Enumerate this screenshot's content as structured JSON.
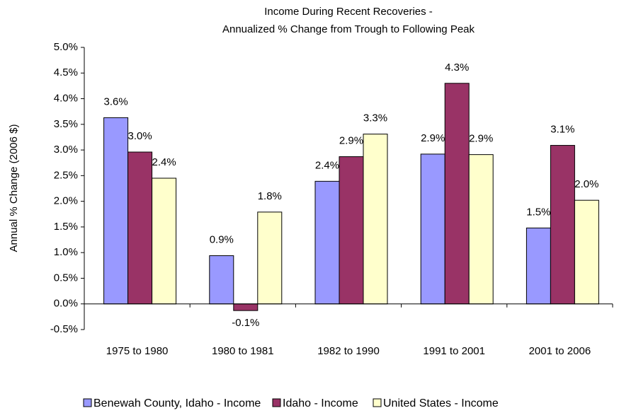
{
  "chart_data": {
    "type": "bar",
    "title": "Income During Recent Recoveries -",
    "subtitle": "Annualized % Change from Trough to Following Peak",
    "y_label": "Annual % Change (2006 $)",
    "categories": [
      "1975 to 1980",
      "1980 to 1981",
      "1982 to 1990",
      "1991 to 2001",
      "2001 to 2006"
    ],
    "series": [
      {
        "name": "Benewah County, Idaho - Income",
        "color": "#9999ff",
        "values": [
          3.63,
          0.94,
          2.39,
          2.92,
          1.48
        ],
        "value_labels": [
          "3.6%",
          "0.9%",
          "2.4%",
          "2.9%",
          "1.5%"
        ]
      },
      {
        "name": "Idaho - Income",
        "color": "#993366",
        "values": [
          2.96,
          -0.13,
          2.87,
          4.3,
          3.09
        ],
        "value_labels": [
          "3.0%",
          "-0.1%",
          "2.9%",
          "4.3%",
          "3.1%"
        ]
      },
      {
        "name": "United States - Income",
        "color": "#ffffcc",
        "values": [
          2.45,
          1.79,
          3.31,
          2.91,
          2.02
        ],
        "value_labels": [
          "2.4%",
          "1.8%",
          "3.3%",
          "2.9%",
          "2.0%"
        ]
      }
    ],
    "ylim": [
      -0.5,
      5.0
    ],
    "yticks": [
      {
        "value": -0.5,
        "label": "-0.5%"
      },
      {
        "value": 0,
        "label": "0.0%"
      },
      {
        "value": 0.5,
        "label": "0.5%"
      },
      {
        "value": 1.0,
        "label": "1.0%"
      },
      {
        "value": 1.5,
        "label": "1.5%"
      },
      {
        "value": 2.0,
        "label": "2.0%"
      },
      {
        "value": 2.5,
        "label": "2.5%"
      },
      {
        "value": 3.0,
        "label": "3.0%"
      },
      {
        "value": 3.5,
        "label": "3.5%"
      },
      {
        "value": 4.0,
        "label": "4.0%"
      },
      {
        "value": 4.5,
        "label": "4.5%"
      },
      {
        "value": 5.0,
        "label": "5.0%"
      }
    ],
    "grid": false,
    "legend": "bottom"
  }
}
